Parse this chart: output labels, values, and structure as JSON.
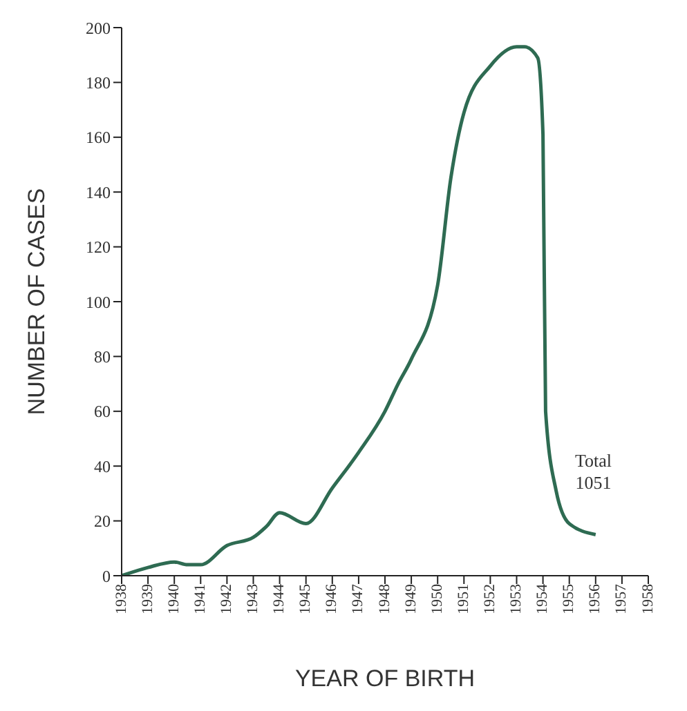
{
  "chart_data": {
    "type": "line",
    "xlabel": "YEAR OF BIRTH",
    "ylabel": "NUMBER OF CASES",
    "x": [
      1938,
      1939,
      1940,
      1940.5,
      1941,
      1942,
      1943,
      1943.5,
      1944,
      1945,
      1946,
      1947,
      1948,
      1948.5,
      1949,
      1950,
      1950.5,
      1951,
      1952,
      1953,
      1953.3,
      1953.8,
      1954,
      1954.1,
      1954.5,
      1955,
      1956
    ],
    "series": [
      {
        "color": "#2e6b52",
        "values": [
          0,
          3,
          5,
          4,
          4,
          11,
          14,
          18,
          23,
          19,
          32,
          45,
          60,
          70,
          79,
          106,
          145,
          169,
          186,
          193,
          193,
          189,
          161,
          60,
          31,
          19,
          15
        ]
      }
    ],
    "xlim": [
      1938,
      1958
    ],
    "xticks": [
      1938,
      1939,
      1940,
      1941,
      1942,
      1943,
      1944,
      1945,
      1946,
      1947,
      1948,
      1949,
      1950,
      1951,
      1952,
      1953,
      1954,
      1955,
      1956,
      1957,
      1958
    ],
    "ylim": [
      0,
      200
    ],
    "yticks": [
      0,
      20,
      40,
      60,
      80,
      100,
      120,
      140,
      160,
      180,
      200
    ],
    "grid": false,
    "legend": false,
    "marker": "none",
    "line_style": "solid",
    "annotations": [
      "Total\n1051"
    ]
  }
}
